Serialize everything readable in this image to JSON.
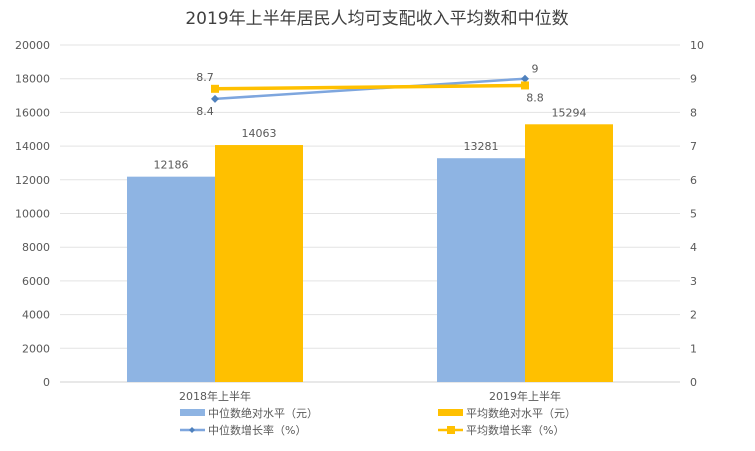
{
  "chart_data": {
    "type": "bar+line",
    "title": "2019年上半年居民人均可支配收入平均数和中位数",
    "categories": [
      "2018年上半年",
      "2019年上半年"
    ],
    "y_left": {
      "range": [
        0,
        20000
      ],
      "ticks": [
        0,
        2000,
        4000,
        6000,
        8000,
        10000,
        12000,
        14000,
        16000,
        18000,
        20000
      ]
    },
    "y_right": {
      "range": [
        0,
        10
      ],
      "ticks": [
        0,
        1,
        2,
        3,
        4,
        5,
        6,
        7,
        8,
        9,
        10
      ]
    },
    "grid": true,
    "legend_placement": "bottom",
    "bar_series": [
      {
        "name": "中位数绝对水平（元）",
        "values": [
          12186,
          13281
        ],
        "color": "#8EB4E3",
        "axis": "left"
      },
      {
        "name": "平均数绝对水平（元）",
        "values": [
          14063,
          15294
        ],
        "color": "#FFC000",
        "axis": "left"
      }
    ],
    "line_series": [
      {
        "name": "中位数增长率（%）",
        "values": [
          8.4,
          9
        ],
        "color": "#7EA6DE",
        "marker": "diamond",
        "axis": "right"
      },
      {
        "name": "平均数增长率（%）",
        "values": [
          8.7,
          8.8
        ],
        "color": "#FFC000",
        "marker": "square",
        "axis": "right"
      }
    ]
  }
}
